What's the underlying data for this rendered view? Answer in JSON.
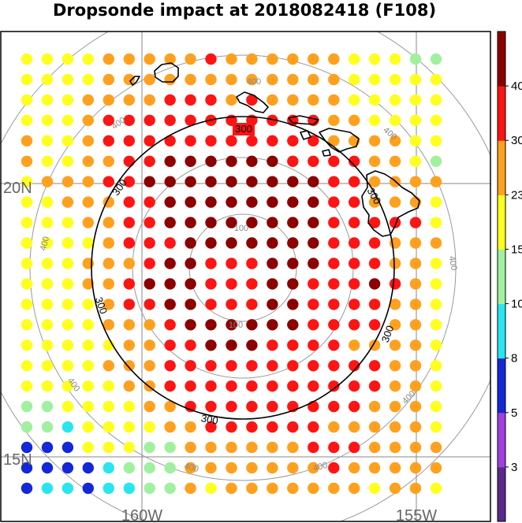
{
  "title": "Dropsonde impact at 2018082418 (F108)",
  "lat_labels": [
    "20N",
    "15N"
  ],
  "lon_labels": [
    "160W",
    "155W"
  ],
  "contours": {
    "black": {
      "value": "300",
      "labels": [
        "300",
        "300",
        "300",
        "300",
        "300",
        "300"
      ]
    },
    "gray": {
      "inner_labels": [
        "100",
        "100"
      ],
      "outer_labels": [
        "400",
        "400",
        "400",
        "400",
        "400",
        "400",
        "400",
        "400",
        "400"
      ]
    }
  },
  "colorbar": {
    "tick_labels": [
      "3",
      "5",
      "8",
      "10",
      "15",
      "23",
      "30",
      "40"
    ],
    "colors": [
      "#5a2a8a",
      "#a040e0",
      "#1428d8",
      "#28e6f0",
      "#a0f0a0",
      "#ffff1e",
      "#ffa01e",
      "#ff1414",
      "#8c0000"
    ]
  },
  "color_scale": {
    "Y": "#ffff1e",
    "O": "#ffa01e",
    "R": "#ff1414",
    "D": "#8c0000",
    "G": "#a0f0a0",
    "C": "#28e6f0",
    "B": "#1428d8"
  },
  "grid_rows": [
    "YYYYOOOOOROOOOOOYYYGG",
    "YYYYOOOOOOOOOOOOYYYYY",
    "YYYOOOORRROROOOOYYYYY",
    "YYYORRRRRRRRRRROOYYYY",
    "OYYORRRRRRRRRRROOOOYY",
    "OYYOORRDDDDDDRRRROOYG",
    "YOOORRDDDDDDDDDRROOOO",
    "YYOOORRDDDDDDDDRROOOY",
    "YYYOORRDDDDDDDDRRRRRY",
    "YYYYORRRDDDDDDDRRROOO",
    "YYYOOORDDRRRDDDRRROOY",
    "YYYOORDDDRRRDDRRRDROY",
    "YYYYORRDDRRRDDRRRROOY",
    "YYYYOOORDDDDDDRRRROOY",
    "YYYYYOORRDDDRRRROOOOY",
    "YYYYOOORRRRRRRRRRROOY",
    "YYYYYOORRRRRRRRRRROOY",
    "GGYYYYOORRRRRRRRROOOY",
    "GGCYYYYOORRRRRROOOOOY",
    "BBBYYYGGOOOOOORRROOOO",
    "BBBBCGGGOOOOOOOROOOOO",
    "BCCBCCGGOYOOOOOOOYOOY"
  ]
}
